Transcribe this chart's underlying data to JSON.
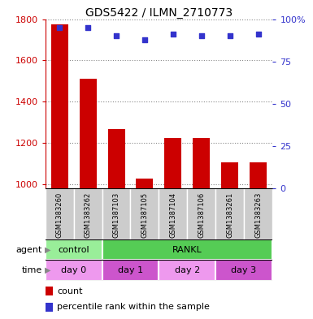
{
  "title": "GDS5422 / ILMN_2710773",
  "samples": [
    "GSM1383260",
    "GSM1383262",
    "GSM1387103",
    "GSM1387105",
    "GSM1387104",
    "GSM1387106",
    "GSM1383261",
    "GSM1383263"
  ],
  "counts": [
    1775,
    1510,
    1265,
    1025,
    1225,
    1225,
    1105,
    1105
  ],
  "percentile_ranks": [
    95,
    95,
    90,
    88,
    91,
    90,
    90,
    91
  ],
  "ylim_left": [
    980,
    1800
  ],
  "ylim_right": [
    0,
    100
  ],
  "yticks_left": [
    1000,
    1200,
    1400,
    1600,
    1800
  ],
  "yticks_right": [
    0,
    25,
    50,
    75,
    100
  ],
  "ytick_right_labels": [
    "0",
    "25",
    "50",
    "75",
    "100%"
  ],
  "bar_color": "#cc0000",
  "dot_color": "#3333cc",
  "bar_width": 0.6,
  "background_gray": "#cccccc",
  "agent_control_color": "#99ee99",
  "agent_rankl_color": "#55cc55",
  "time_day0_color": "#ee99ee",
  "time_day1_color": "#cc55cc",
  "time_day2_color": "#ee99ee",
  "time_day3_color": "#cc55cc",
  "legend_count_color": "#cc0000",
  "legend_dot_color": "#3333cc"
}
